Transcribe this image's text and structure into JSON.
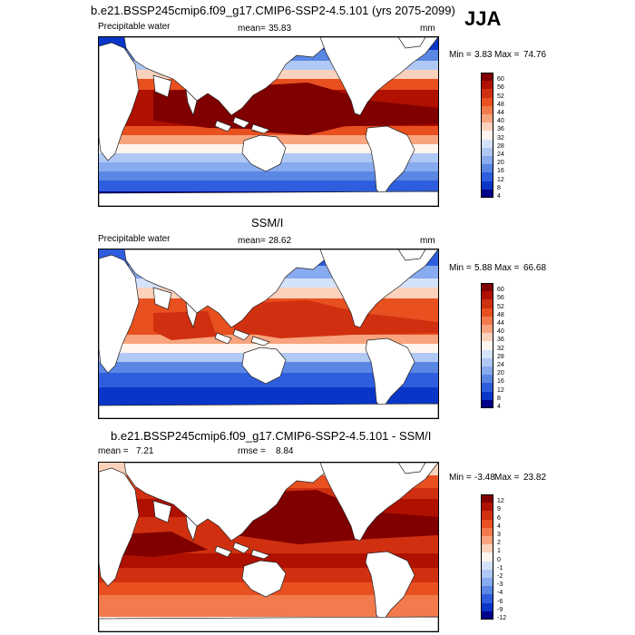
{
  "chart_data": [
    {
      "type": "heatmap",
      "title": "b.e21.BSSP245cmip6.f09_g17.CMIP6-SSP2-4.5.101 (yrs 2075-2099)",
      "season": "JJA",
      "variable": "Precipitable water",
      "units": "mm",
      "mean_label": "mean=",
      "mean": "35.83",
      "min_label": "Min =",
      "min": "3.83",
      "max_label": "Max =",
      "max": "74.76",
      "colorbar_levels": [
        "60",
        "56",
        "52",
        "48",
        "44",
        "40",
        "36",
        "32",
        "28",
        "24",
        "20",
        "16",
        "12",
        "8",
        "4"
      ]
    },
    {
      "type": "heatmap",
      "title": "SSM/I",
      "variable": "Precipitable water",
      "units": "mm",
      "mean_label": "mean=",
      "mean": "28.62",
      "min_label": "Min =",
      "min": "5.88",
      "max_label": "Max =",
      "max": "66.68",
      "colorbar_levels": [
        "60",
        "56",
        "52",
        "48",
        "44",
        "40",
        "36",
        "32",
        "28",
        "24",
        "20",
        "16",
        "12",
        "8",
        "4"
      ]
    },
    {
      "type": "heatmap",
      "title": "b.e21.BSSP245cmip6.f09_g17.CMIP6-SSP2-4.5.101 - SSM/I",
      "mean_label": "mean =",
      "mean": "7.21",
      "rmse_label": "rmse =",
      "rmse": "8.84",
      "min_label": "Min =",
      "min": "-3.48",
      "max_label": "Max =",
      "max": "23.82",
      "colorbar_levels": [
        "12",
        "9",
        "6",
        "4",
        "3",
        "2",
        "1",
        "0",
        "-1",
        "-2",
        "-3",
        "-4",
        "-6",
        "-9",
        "-12"
      ]
    }
  ],
  "colors": {
    "scale": [
      "#800000",
      "#b01000",
      "#d03010",
      "#e85020",
      "#f27a4c",
      "#f8a47e",
      "#fcd2bc",
      "#fff4ee",
      "#d4e2fa",
      "#b0c8f4",
      "#88aaee",
      "#5a86e4",
      "#2e5ede",
      "#0a36c8",
      "#00008a"
    ]
  }
}
